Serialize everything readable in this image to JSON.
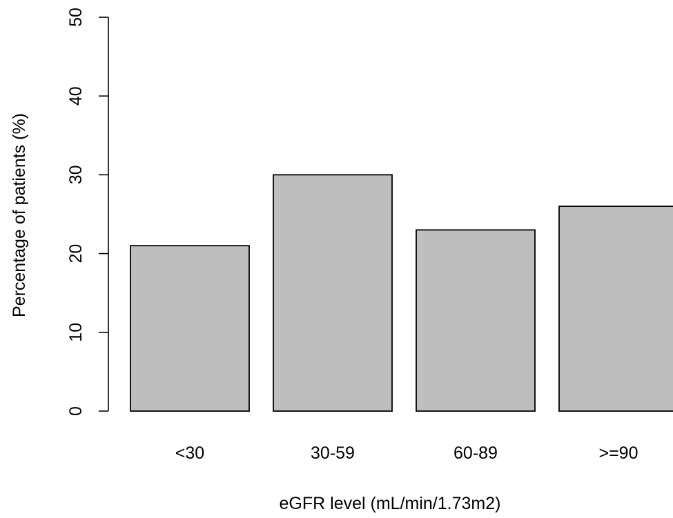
{
  "chart_data": {
    "type": "bar",
    "categories": [
      "<30",
      "30-59",
      "60-89",
      ">=90"
    ],
    "values": [
      21,
      30,
      23,
      26
    ],
    "title": "",
    "xlabel": "eGFR level (mL/min/1.73m2)",
    "ylabel": "Percentage of patients (%)",
    "ylim": [
      0,
      50
    ],
    "yticks": [
      0,
      10,
      20,
      30,
      40,
      50
    ],
    "grid": false,
    "bar_color": "#bebebe",
    "edge_color": "#000000"
  }
}
